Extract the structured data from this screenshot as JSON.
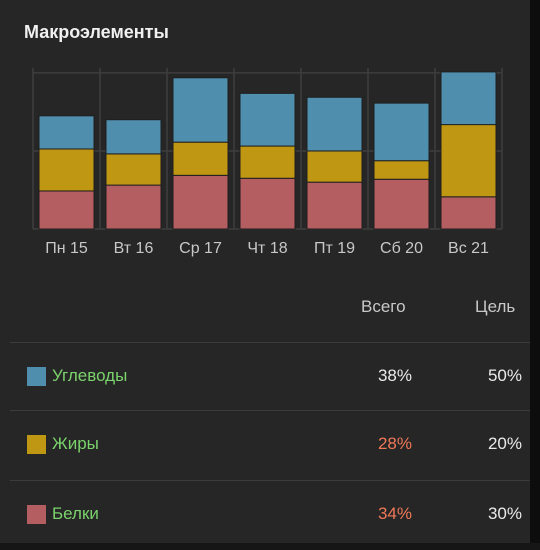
{
  "title": "Макроэлементы",
  "colors": {
    "carbs": "#4f8ead",
    "fats": "#c09713",
    "protein": "#b45e61",
    "label_green": "#7bd36c",
    "over_goal": "#f07857",
    "normal": "#eaeaea",
    "gridline": "#3e3e3e"
  },
  "chart_data": {
    "type": "bar",
    "stacked": true,
    "categories": [
      "Пн 15",
      "Вт 16",
      "Ср 17",
      "Чт 18",
      "Пт 19",
      "Сб 20",
      "Вс 21"
    ],
    "series": [
      {
        "name": "Белки",
        "color": "#b45e61",
        "values": [
          39,
          45,
          55,
          52,
          48,
          51,
          33
        ]
      },
      {
        "name": "Жиры",
        "color": "#c09713",
        "values": [
          43,
          32,
          34,
          33,
          32,
          19,
          74
        ]
      },
      {
        "name": "Углеводы",
        "color": "#4f8ead",
        "values": [
          34,
          35,
          66,
          54,
          55,
          59,
          54
        ]
      }
    ],
    "ylim": [
      0,
      165
    ],
    "grid": true,
    "gridlines_y": [
      80,
      160
    ]
  },
  "table": {
    "header_total": "Всего",
    "header_goal": "Цель",
    "rows": [
      {
        "label": "Углеводы",
        "swatch": "#4f8ead",
        "total": "38%",
        "goal": "50%",
        "total_color": "#eaeaea"
      },
      {
        "label": "Жиры",
        "swatch": "#c09713",
        "total": "28%",
        "goal": "20%",
        "total_color": "#f07857"
      },
      {
        "label": "Белки",
        "swatch": "#b45e61",
        "total": "34%",
        "goal": "30%",
        "total_color": "#f07857"
      }
    ]
  }
}
